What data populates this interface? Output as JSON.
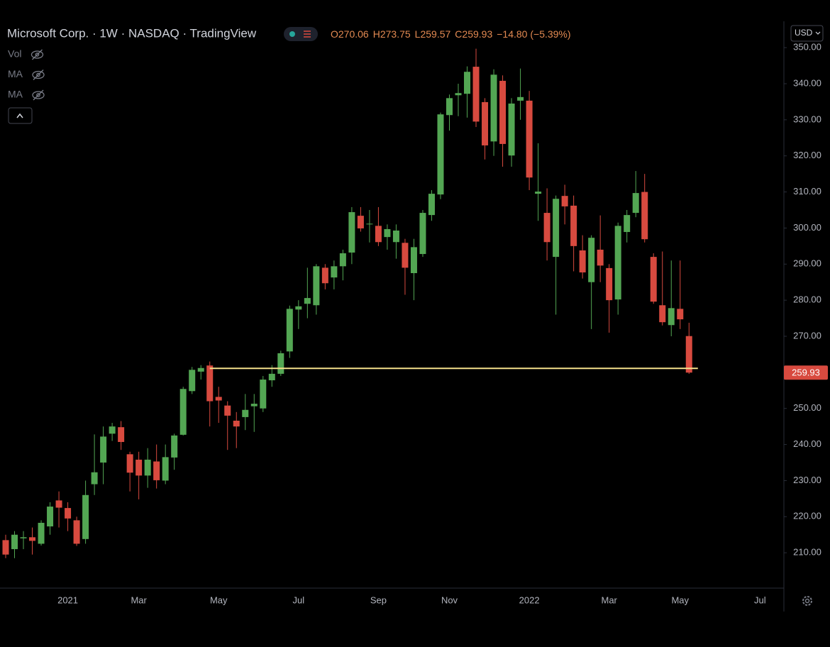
{
  "chart_data": {
    "type": "candlestick",
    "title": "Microsoft Corp. · 1W · NASDAQ · TradingView",
    "ohlc_letters": [
      "O",
      "H",
      "L",
      "C"
    ],
    "change": "−14.80 (−5.39%)",
    "legend_color": "#e38a52",
    "indicators": [
      "Vol",
      "MA",
      "MA"
    ],
    "currency": "USD",
    "up_color": "#53a653",
    "down_color": "#d84a3f",
    "categories": [
      null,
      null,
      null,
      null,
      null,
      null,
      null,
      "2021",
      null,
      null,
      null,
      null,
      null,
      null,
      null,
      "Mar",
      null,
      null,
      null,
      null,
      null,
      null,
      null,
      null,
      "May",
      null,
      null,
      null,
      null,
      null,
      null,
      null,
      null,
      "Jul",
      null,
      null,
      null,
      null,
      null,
      null,
      null,
      null,
      "Sep",
      null,
      null,
      null,
      null,
      null,
      null,
      null,
      "Nov",
      null,
      null,
      null,
      null,
      null,
      null,
      null,
      null,
      "2022",
      null,
      null,
      null,
      null,
      null,
      null,
      null,
      null,
      "Mar",
      null,
      null,
      null,
      null,
      null,
      null,
      null,
      "May",
      null,
      null,
      null,
      null,
      null,
      null,
      null,
      null,
      "Jul",
      null,
      null
    ],
    "open": [
      213.5,
      211,
      214,
      214.3,
      212.5,
      217.3,
      224.5,
      222.4,
      219,
      213.8,
      229,
      235,
      243,
      244.8,
      237.3,
      235.8,
      231.4,
      235.3,
      230,
      236.4,
      242.7,
      254.8,
      260.2,
      261.9,
      253.2,
      250.8,
      246.6,
      247.6,
      250.6,
      250,
      257.8,
      259.6,
      265.8,
      277.4,
      279,
      278.6,
      289,
      286.3,
      289.4,
      293.2,
      303.4,
      301.2,
      300.6,
      297.5,
      296.1,
      295.9,
      287.5,
      292.8,
      303.6,
      309.3,
      331.3,
      336.8,
      337.2,
      344.7,
      334.9,
      324,
      340.8,
      320.1,
      335.3,
      335.3,
      309.5,
      304.2,
      292,
      308.9,
      306.2,
      293.8,
      285,
      294,
      288.9,
      280.2,
      298.9,
      304.2,
      310,
      292,
      278.6,
      273.1,
      277.6,
      270.06,
      null,
      null,
      null,
      null,
      null,
      null,
      null,
      null,
      null,
      null
    ],
    "high": [
      215,
      216,
      216,
      217,
      219,
      224,
      227,
      224,
      220,
      230,
      242.8,
      245,
      246,
      246.5,
      238,
      238,
      239,
      240,
      240,
      243,
      256,
      261.5,
      262,
      263,
      256,
      252,
      249,
      254,
      254,
      259,
      262,
      266,
      278.5,
      280,
      289,
      290,
      290,
      291,
      294,
      305.8,
      305.8,
      305,
      305.8,
      301,
      301,
      297,
      297,
      305,
      310.5,
      332,
      337,
      340,
      344.8,
      349.7,
      336,
      344,
      342.3,
      336,
      344.2,
      338,
      323.5,
      311,
      309,
      312,
      309,
      298,
      298,
      303.5,
      290,
      301.5,
      305,
      315.8,
      315,
      293,
      293.5,
      291,
      291,
      273.75,
      null,
      null,
      null,
      null,
      null,
      null,
      null,
      null,
      null,
      null
    ],
    "low": [
      208.5,
      208.5,
      211,
      209.5,
      212,
      215,
      217,
      216,
      211.9,
      212.5,
      226,
      229,
      241,
      238.5,
      227,
      224.8,
      228,
      227.8,
      229,
      233,
      242.5,
      254,
      258,
      245,
      246,
      238.5,
      239,
      244,
      243.5,
      249,
      256,
      259,
      264,
      272,
      275,
      276,
      283,
      283,
      285.5,
      290,
      299,
      296,
      295,
      294,
      291.5,
      281.5,
      280,
      292,
      302,
      308,
      327,
      331,
      330.6,
      328,
      319,
      320,
      317,
      317,
      330,
      310.5,
      302,
      291,
      276,
      301,
      288,
      286,
      272,
      285,
      271,
      276,
      296,
      303,
      296,
      279,
      273,
      270,
      272,
      259.57,
      null,
      null,
      null,
      null,
      null,
      null,
      null,
      null,
      null,
      null
    ],
    "close": [
      209.5,
      215,
      214.3,
      213.3,
      218.3,
      222.8,
      222.5,
      219.5,
      212.5,
      226,
      232.3,
      242.2,
      245,
      240.7,
      232.2,
      231.4,
      235.8,
      230.1,
      236.5,
      242.5,
      255.4,
      260.7,
      261.2,
      252,
      252.2,
      248,
      245,
      249.6,
      251.3,
      258,
      259.6,
      265.3,
      277.6,
      278.3,
      280.6,
      289.4,
      284.7,
      289.4,
      293,
      304.4,
      299.9,
      301.2,
      296.1,
      299.7,
      299.3,
      289,
      294.7,
      304.2,
      309.5,
      331.5,
      336,
      337.4,
      343.3,
      329.5,
      322.9,
      342.5,
      323.3,
      334.5,
      336.3,
      314,
      310.1,
      296.1,
      308.1,
      306,
      295,
      287.7,
      297.3,
      289.6,
      280,
      300.6,
      303.6,
      309.7,
      296.9,
      279.6,
      273.9,
      277.8,
      274.7,
      259.93,
      null,
      null,
      null,
      null,
      null,
      null,
      null,
      null,
      null,
      null
    ],
    "ylim": [
      200.2,
      357.3
    ],
    "yticks": [
      {
        "value": 210,
        "label": "210.00"
      },
      {
        "value": 220,
        "label": "220.00"
      },
      {
        "value": 230,
        "label": "230.00"
      },
      {
        "value": 240,
        "label": "240.00"
      },
      {
        "value": 250,
        "label": "250.00"
      },
      {
        "value": 260,
        "label": "260.00"
      },
      {
        "value": 270,
        "label": "270.00"
      },
      {
        "value": 280,
        "label": "280.00"
      },
      {
        "value": 290,
        "label": "290.00"
      },
      {
        "value": 300,
        "label": "300.00"
      },
      {
        "value": 310,
        "label": "310.00"
      },
      {
        "value": 320,
        "label": "320.00"
      },
      {
        "value": 330,
        "label": "330.00"
      },
      {
        "value": 340,
        "label": "340.00"
      },
      {
        "value": 350,
        "label": "350.00"
      }
    ],
    "horizontal_line": {
      "value": 261.1,
      "color": "#f5e08c",
      "start": 23
    }
  }
}
